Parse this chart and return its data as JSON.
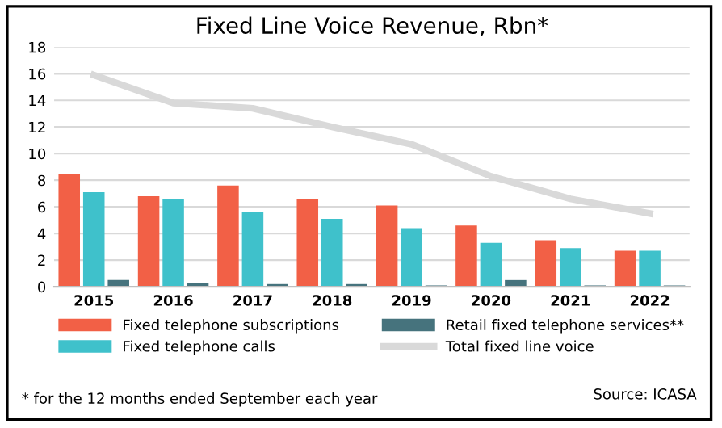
{
  "chart_data": {
    "type": "bar",
    "title": "Fixed Line Voice Revenue, Rbn*",
    "categories": [
      "2015",
      "2016",
      "2017",
      "2018",
      "2019",
      "2020",
      "2021",
      "2022"
    ],
    "series": [
      {
        "name": "Fixed telephone subscriptions",
        "color": "#f26046",
        "values": [
          8.5,
          6.8,
          7.6,
          6.6,
          6.1,
          4.6,
          3.5,
          2.7
        ]
      },
      {
        "name": "Fixed telephone calls",
        "color": "#3fc1cb",
        "values": [
          7.1,
          6.6,
          5.6,
          5.1,
          4.4,
          3.3,
          2.9,
          2.7
        ]
      },
      {
        "name": "Retail fixed telephone services**",
        "color": "#46737d",
        "values": [
          0.5,
          0.3,
          0.2,
          0.2,
          0.1,
          0.5,
          0.1,
          0.1
        ]
      },
      {
        "name": "Total fixed line voice",
        "color": "#d9d9d9",
        "type": "line",
        "values": [
          15.9,
          13.8,
          13.4,
          12.0,
          10.7,
          8.3,
          6.6,
          5.5
        ]
      }
    ],
    "ylim": [
      0,
      18
    ],
    "yticks": [
      0,
      2,
      4,
      6,
      8,
      10,
      12,
      14,
      16,
      18
    ],
    "grid": "y",
    "legend": "bottom",
    "annotations": [
      "* for the 12 months ended September each year",
      "Source: ICASA"
    ]
  }
}
